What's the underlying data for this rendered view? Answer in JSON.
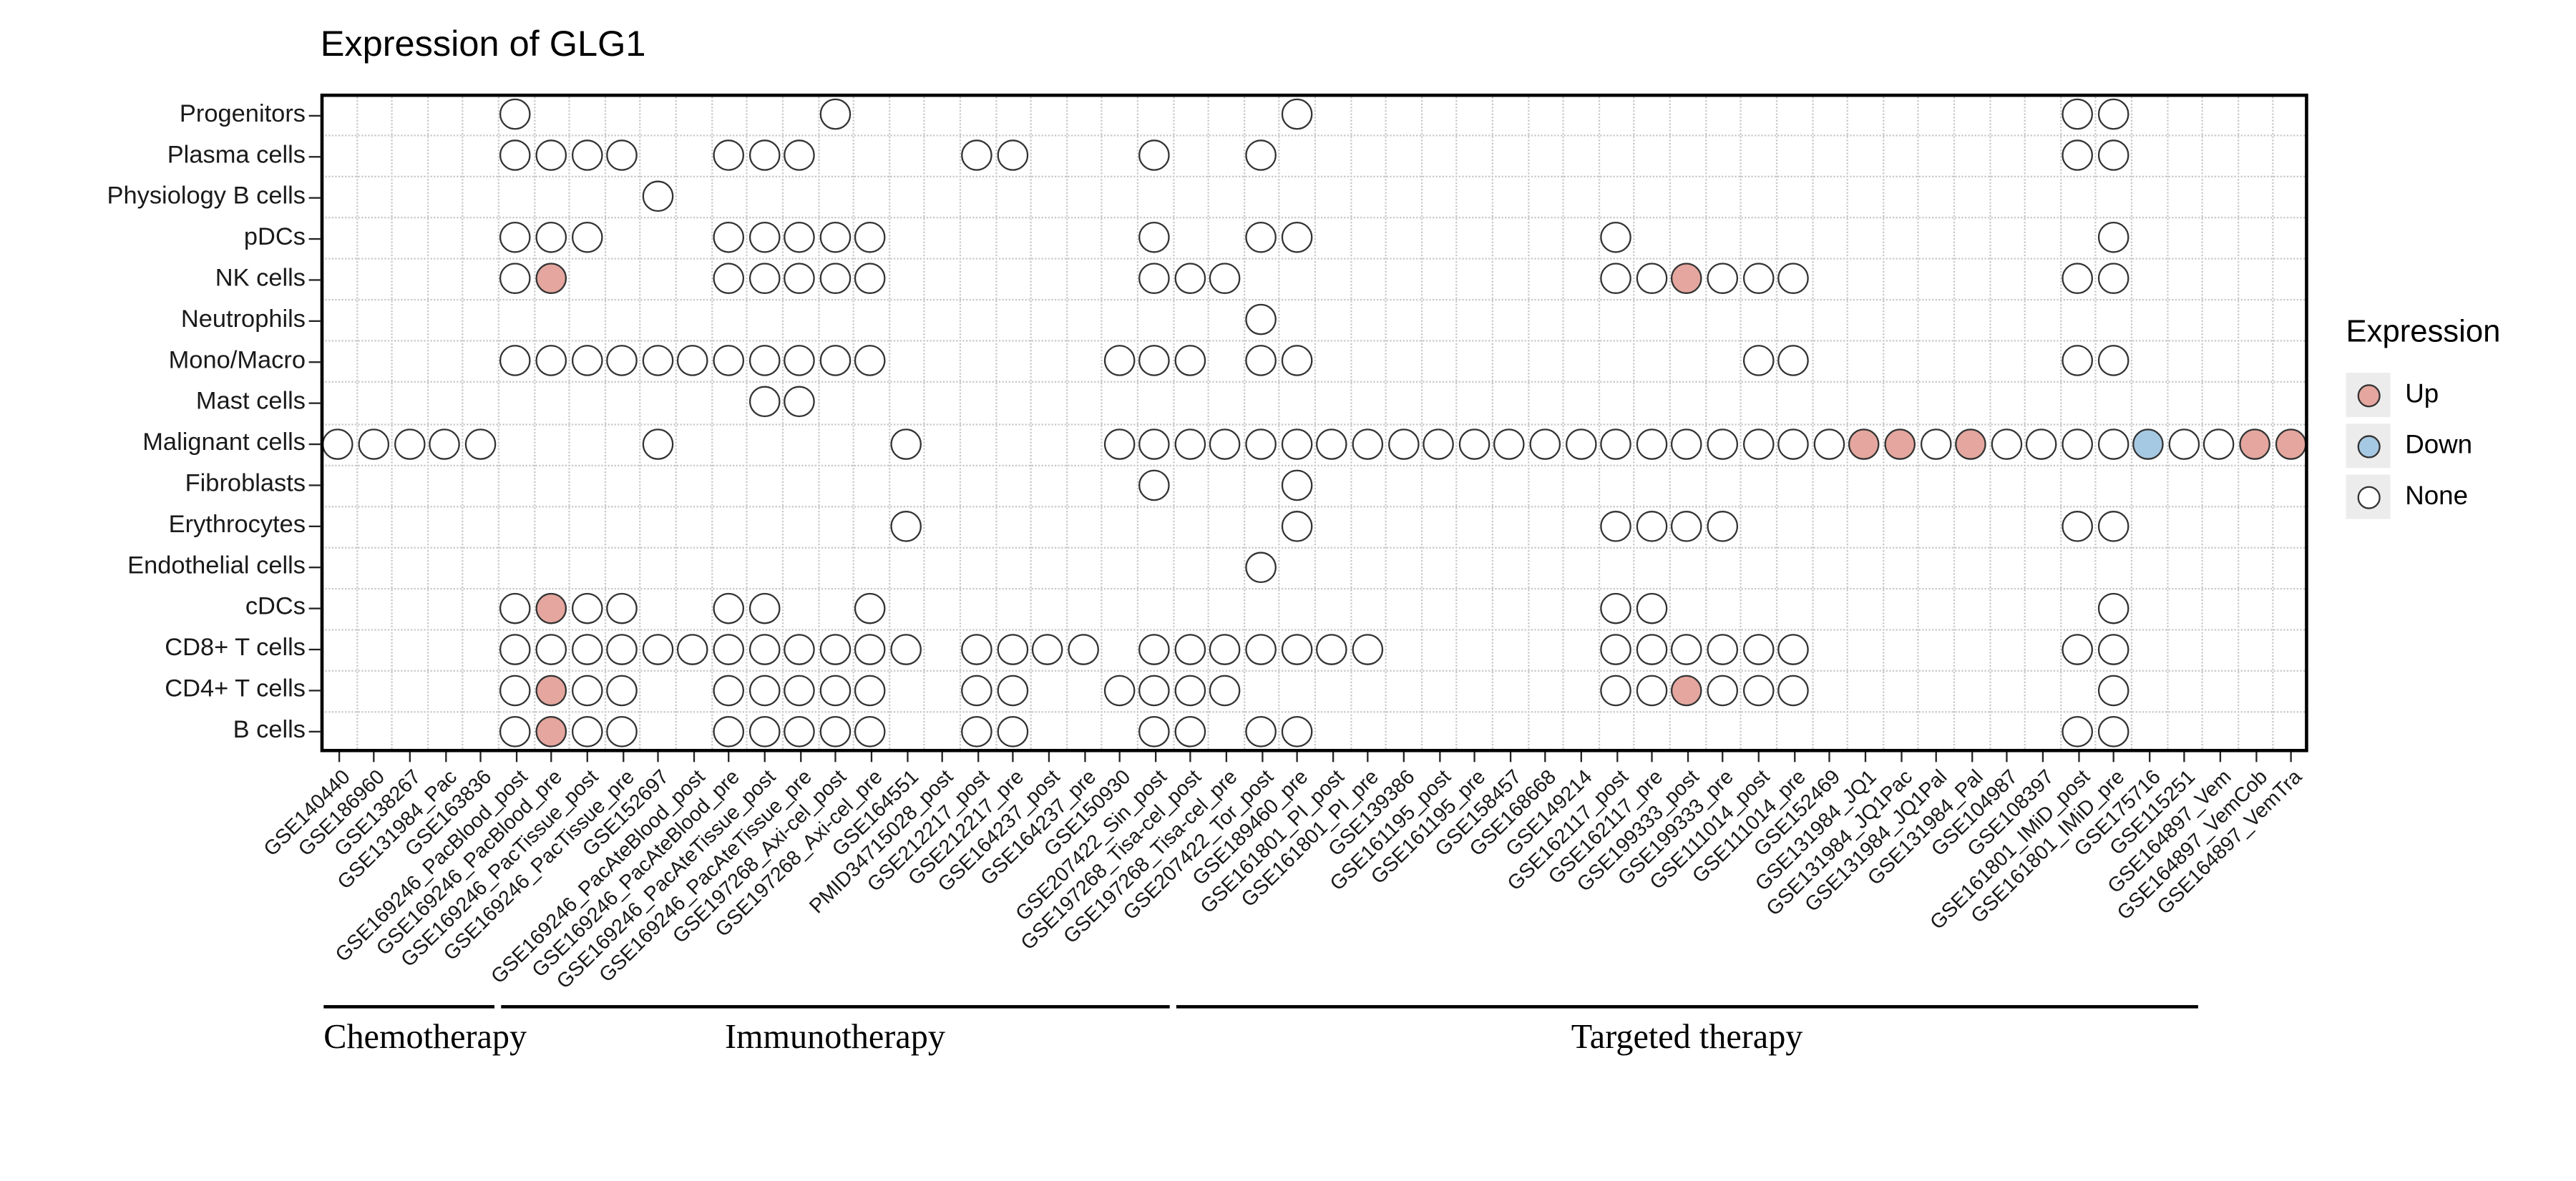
{
  "chart_data": {
    "type": "heatmap",
    "title": "Expression of GLG1",
    "legend": {
      "title": "Expression",
      "items": [
        {
          "label": "Up",
          "color": "#E4A69E"
        },
        {
          "label": "Down",
          "color": "#A6C9E3"
        },
        {
          "label": "None",
          "color": "#FFFFFF"
        }
      ]
    },
    "colors": {
      "up": "#E4A69E",
      "down": "#A6C9E3",
      "none": "#FFFFFF",
      "border": "#333333",
      "grid": "#C9C9C9",
      "panel_border": "#000000"
    },
    "codes": {
      ".": "no circle",
      "o": "None",
      "U": "Up",
      "D": "Down"
    },
    "rows": [
      "Progenitors",
      "Plasma cells",
      "Physiology B cells",
      "pDCs",
      "NK cells",
      "Neutrophils",
      "Mono/Macro",
      "Mast cells",
      "Malignant cells",
      "Fibroblasts",
      "Erythrocytes",
      "Endothelial cells",
      "cDCs",
      "CD8+ T cells",
      "CD4+ T cells",
      "B cells"
    ],
    "columns": [
      "GSE140440",
      "GSE186960",
      "GSE138267",
      "GSE131984_Pac",
      "GSE163836",
      "GSE169246_PacBlood_post",
      "GSE169246_PacBlood_pre",
      "GSE169246_PacTissue_post",
      "GSE169246_PacTissue_pre",
      "GSE152697",
      "GSE169246_PacAteBlood_post",
      "GSE169246_PacAteBlood_pre",
      "GSE169246_PacAteTissue_post",
      "GSE169246_PacAteTissue_pre",
      "GSE197268_Axi-cel_post",
      "GSE197268_Axi-cel_pre",
      "GSE164551",
      "PMID34715028_post",
      "GSE212217_post",
      "GSE212217_pre",
      "GSE164237_post",
      "GSE164237_pre",
      "GSE150930",
      "GSE207422_Sin_post",
      "GSE197268_Tisa-cel_post",
      "GSE197268_Tisa-cel_pre",
      "GSE207422_Tor_post",
      "GSE189460_pre",
      "GSE161801_PI_post",
      "GSE161801_PI_pre",
      "GSE139386",
      "GSE161195_post",
      "GSE161195_pre",
      "GSE158457",
      "GSE168668",
      "GSE149214",
      "GSE162117_post",
      "GSE162117_pre",
      "GSE199333_post",
      "GSE199333_pre",
      "GSE111014_post",
      "GSE111014_pre",
      "GSE152469",
      "GSE131984_JQ1",
      "GSE131984_JQ1Pac",
      "GSE131984_JQ1Pal",
      "GSE131984_Pal",
      "GSE104987",
      "GSE108397",
      "GSE161801_IMiD_post",
      "GSE161801_IMiD_pre",
      "GSE175716",
      "GSE115251",
      "GSE164897_Vem",
      "GSE164897_VemCob",
      "GSE164897_VemTra"
    ],
    "column_groups": [
      {
        "label": "Chemotherapy",
        "start": 0,
        "end": 4
      },
      {
        "label": "Immunotherapy",
        "start": 5,
        "end": 23
      },
      {
        "label": "Targeted therapy",
        "start": 24,
        "end": 52
      }
    ],
    "matrix": [
      ".....o........o............o.....................oo.....",
      ".....oooo..ooo....oo...o..o......................oo.....",
      ".........o..............................................",
      ".....ooo...ooooo.......o..oo........o.............o.....",
      ".....oU....ooooo.......ooo..........ooUooo.......oo.....",
      "..........................o.............................",
      ".....ooooooooooo......ooo.oo............oo.......oo.....",
      "............oo..........................................",
      "ooooo....o......o.....oooooooooooooooooooooUUoUooooDooUU",
      ".......................o...o............................",
      "................o..........o........oooo.........oo.....",
      "..........................o.............................",
      ".....oUoo..oo..o....................oo............o.....",
      ".....oooooooooooo.oooo.ooooooo......oooooo.......oo.....",
      ".....oUoo..ooooo..oo..oooo..........ooUooo........o.....",
      ".....oUoo..ooooo..oo...oo.oo.....................oo....."
    ]
  }
}
